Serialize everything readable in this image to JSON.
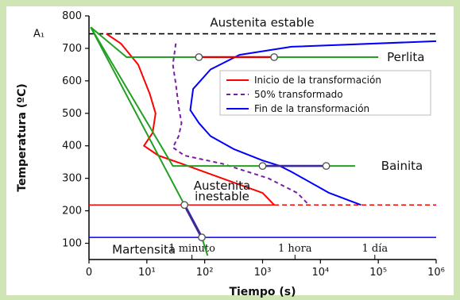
{
  "chart_data": {
    "type": "line",
    "title": "",
    "xlabel": "Tiempo (s)",
    "ylabel": "Temperatura (ºC)",
    "xscale": "log",
    "xlim": [
      0,
      6
    ],
    "ylim": [
      50,
      800
    ],
    "yticks": [
      100,
      200,
      300,
      400,
      500,
      600,
      700,
      800
    ],
    "xtick_labels": [
      "0",
      "10¹",
      "10²",
      "10³",
      "10⁴",
      "10⁵",
      "10⁶"
    ],
    "a1_label": "A₁",
    "a1_temperature": 745,
    "time_marks": [
      {
        "label": "1 minuto",
        "log_seconds": 1.78
      },
      {
        "label": "1 hora",
        "log_seconds": 3.56
      },
      {
        "label": "1 día",
        "log_seconds": 4.94
      }
    ],
    "series": [
      {
        "name": "Inicio de la transformación",
        "color": "#ff0000",
        "style": "solid",
        "points": [
          [
            0.3,
            745
          ],
          [
            0.55,
            715
          ],
          [
            0.85,
            650
          ],
          [
            1.05,
            560
          ],
          [
            1.15,
            500
          ],
          [
            1.1,
            440
          ],
          [
            0.95,
            400
          ],
          [
            1.2,
            370
          ],
          [
            1.6,
            345
          ],
          [
            2.3,
            300
          ],
          [
            3.0,
            255
          ],
          [
            3.2,
            218
          ]
        ]
      },
      {
        "name": "50% transformado",
        "color": "#7b1fa2",
        "style": "dashed",
        "points": [
          [
            1.5,
            715
          ],
          [
            1.45,
            650
          ],
          [
            1.5,
            590
          ],
          [
            1.55,
            520
          ],
          [
            1.6,
            470
          ],
          [
            1.55,
            430
          ],
          [
            1.45,
            395
          ],
          [
            1.65,
            370
          ],
          [
            2.3,
            345
          ],
          [
            3.1,
            300
          ],
          [
            3.6,
            255
          ],
          [
            3.8,
            218
          ]
        ]
      },
      {
        "name": "Fin de la transformación",
        "color": "#0000ff",
        "style": "solid",
        "points": [
          [
            6.0,
            722
          ],
          [
            3.5,
            705
          ],
          [
            2.6,
            680
          ],
          [
            2.1,
            635
          ],
          [
            1.8,
            575
          ],
          [
            1.75,
            510
          ],
          [
            1.9,
            470
          ],
          [
            2.1,
            430
          ],
          [
            2.5,
            390
          ],
          [
            3.0,
            355
          ],
          [
            3.3,
            338
          ],
          [
            3.5,
            320
          ],
          [
            4.15,
            255
          ],
          [
            4.7,
            218
          ]
        ]
      }
    ],
    "cooling_curves_color": "#22a022",
    "transformation_lines": [
      {
        "label": "Perlita",
        "temperature": 673
      },
      {
        "label": "Bainita",
        "temperature": 338
      }
    ],
    "martensite_lines": [
      {
        "color": "#ff0000",
        "temperature": 218
      },
      {
        "color": "#0000ff",
        "temperature": 118
      }
    ],
    "labels": {
      "stable": "Austenita estable",
      "unstable": "Austenita\ninestable",
      "martensite": "Martensita",
      "pearlite": "Perlita",
      "bainite": "Bainita"
    },
    "legend_position": "center-right",
    "grid": false
  }
}
